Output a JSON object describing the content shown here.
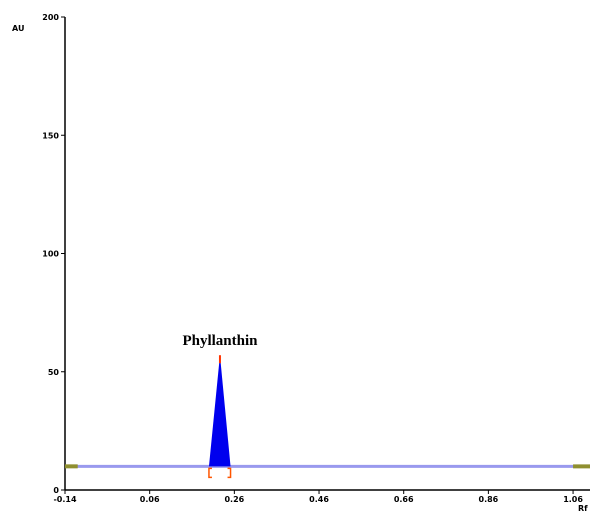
{
  "chart_data": {
    "type": "line",
    "xlabel": "Rf",
    "ylabel": "AU",
    "xlim": [
      -0.14,
      1.1
    ],
    "ylim": [
      0,
      200
    ],
    "x_ticks": [
      -0.14,
      0.06,
      0.26,
      0.46,
      0.66,
      0.86,
      1.06
    ],
    "x_tick_labels": [
      "-0.14",
      "0.06",
      "0.26",
      "0.46",
      "0.66",
      "0.86",
      "1.06"
    ],
    "y_ticks": [
      0,
      50,
      100,
      150,
      200
    ],
    "y_tick_labels": [
      "0",
      "50",
      "100",
      "150",
      "200"
    ],
    "grid": false,
    "baseline": {
      "au": 10,
      "x_start": -0.14,
      "x_end": 1.1,
      "edge_segments": [
        [
          -0.14,
          -0.11
        ],
        [
          1.06,
          1.1
        ]
      ]
    },
    "peaks": [
      {
        "label": "Phyllanthin",
        "rf_start": 0.2,
        "rf_max": 0.226,
        "rf_end": 0.251,
        "height_au": 57,
        "baseline_au": 10
      }
    ],
    "colors": {
      "axis": "#000000",
      "baseline": "#9999ee",
      "baseline_edge": "#8f8f30",
      "peak_fill": "#0000ee",
      "peak_apex": "#ff3300",
      "integration_marks": "#ff5500"
    }
  }
}
